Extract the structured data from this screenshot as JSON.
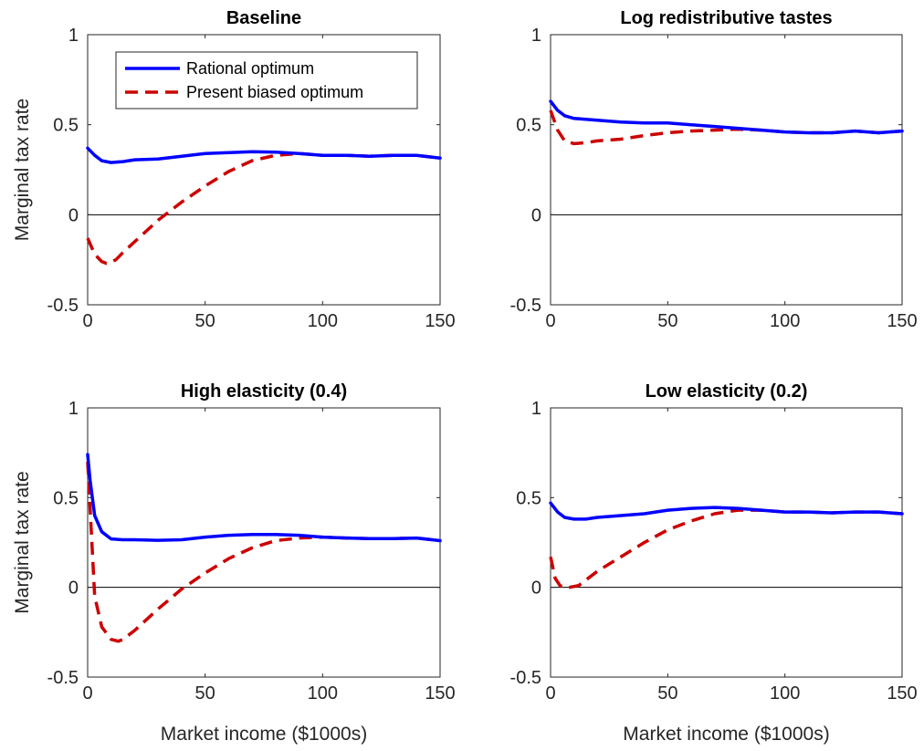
{
  "colors": {
    "rational": "#0000ff",
    "present_biased": "#cc0000",
    "axis": "#262626",
    "zero_line": "#000000"
  },
  "legend": {
    "location": "top-left",
    "items": [
      "Rational optimum",
      "Present biased optimum"
    ]
  },
  "chart_data": [
    {
      "type": "line",
      "title": "Baseline",
      "ylabel": "Marginal tax rate",
      "xlabel": "",
      "xlim": [
        0,
        150
      ],
      "ylim": [
        -0.5,
        1
      ],
      "xticks": [
        "0",
        "50",
        "100",
        "150"
      ],
      "yticks": [
        "-0.5",
        "0",
        "0.5",
        "1"
      ],
      "reference_line_y": 0,
      "series": [
        {
          "name": "Rational optimum",
          "x": [
            0,
            3,
            6,
            10,
            15,
            20,
            30,
            40,
            50,
            60,
            70,
            80,
            90,
            100,
            110,
            120,
            130,
            140,
            150
          ],
          "y": [
            0.37,
            0.33,
            0.3,
            0.29,
            0.295,
            0.305,
            0.31,
            0.325,
            0.34,
            0.345,
            0.35,
            0.348,
            0.34,
            0.33,
            0.33,
            0.325,
            0.33,
            0.33,
            0.315
          ]
        },
        {
          "name": "Present biased optimum",
          "x": [
            0,
            3,
            6,
            8,
            12,
            15,
            20,
            30,
            40,
            50,
            60,
            70,
            80,
            90,
            100,
            110,
            120,
            130,
            140,
            150
          ],
          "y": [
            -0.13,
            -0.22,
            -0.26,
            -0.27,
            -0.25,
            -0.21,
            -0.15,
            -0.03,
            0.07,
            0.16,
            0.24,
            0.3,
            0.33,
            0.34,
            0.33,
            0.33,
            0.325,
            0.33,
            0.33,
            0.315
          ]
        }
      ]
    },
    {
      "type": "line",
      "title": "Log redistributive tastes",
      "ylabel": "",
      "xlabel": "",
      "xlim": [
        0,
        150
      ],
      "ylim": [
        -0.5,
        1
      ],
      "xticks": [
        "0",
        "50",
        "100",
        "150"
      ],
      "yticks": [
        "-0.5",
        "0",
        "0.5",
        "1"
      ],
      "reference_line_y": 0,
      "series": [
        {
          "name": "Rational optimum",
          "x": [
            0,
            3,
            6,
            10,
            15,
            20,
            30,
            40,
            50,
            60,
            70,
            80,
            90,
            100,
            110,
            120,
            130,
            140,
            150
          ],
          "y": [
            0.63,
            0.58,
            0.55,
            0.535,
            0.53,
            0.525,
            0.515,
            0.51,
            0.51,
            0.5,
            0.49,
            0.48,
            0.47,
            0.46,
            0.455,
            0.455,
            0.465,
            0.455,
            0.465
          ]
        },
        {
          "name": "Present biased optimum",
          "x": [
            0,
            3,
            6,
            10,
            15,
            20,
            30,
            40,
            50,
            60,
            70,
            80,
            90,
            100,
            110,
            120,
            130,
            140,
            150
          ],
          "y": [
            0.58,
            0.47,
            0.41,
            0.395,
            0.4,
            0.41,
            0.42,
            0.44,
            0.455,
            0.465,
            0.47,
            0.475,
            0.47,
            0.46,
            0.455,
            0.455,
            0.465,
            0.455,
            0.465
          ]
        }
      ]
    },
    {
      "type": "line",
      "title": "High elasticity (0.4)",
      "ylabel": "Marginal tax rate",
      "xlabel": "Market income ($1000s)",
      "xlim": [
        0,
        150
      ],
      "ylim": [
        -0.5,
        1
      ],
      "xticks": [
        "0",
        "50",
        "100",
        "150"
      ],
      "yticks": [
        "-0.5",
        "0",
        "0.5",
        "1"
      ],
      "reference_line_y": 0,
      "series": [
        {
          "name": "Rational optimum",
          "x": [
            0,
            1,
            3,
            6,
            10,
            15,
            20,
            30,
            40,
            50,
            60,
            70,
            80,
            90,
            100,
            110,
            120,
            130,
            140,
            150
          ],
          "y": [
            0.74,
            0.6,
            0.4,
            0.31,
            0.27,
            0.265,
            0.265,
            0.262,
            0.265,
            0.28,
            0.29,
            0.295,
            0.295,
            0.29,
            0.28,
            0.275,
            0.272,
            0.272,
            0.275,
            0.26
          ]
        },
        {
          "name": "Present biased optimum",
          "x": [
            0,
            1,
            3,
            6,
            10,
            13,
            15,
            20,
            30,
            40,
            50,
            60,
            70,
            80,
            90,
            100,
            110,
            120,
            130,
            140,
            150
          ],
          "y": [
            0.7,
            0.45,
            -0.05,
            -0.22,
            -0.29,
            -0.3,
            -0.29,
            -0.24,
            -0.12,
            -0.01,
            0.08,
            0.16,
            0.22,
            0.26,
            0.275,
            0.28,
            0.275,
            0.272,
            0.272,
            0.275,
            0.26
          ]
        }
      ]
    },
    {
      "type": "line",
      "title": "Low elasticity (0.2)",
      "ylabel": "",
      "xlabel": "Market income ($1000s)",
      "xlim": [
        0,
        150
      ],
      "ylim": [
        -0.5,
        1
      ],
      "xticks": [
        "0",
        "50",
        "100",
        "150"
      ],
      "yticks": [
        "-0.5",
        "0",
        "0.5",
        "1"
      ],
      "reference_line_y": 0,
      "series": [
        {
          "name": "Rational optimum",
          "x": [
            0,
            3,
            6,
            10,
            15,
            20,
            30,
            40,
            50,
            60,
            70,
            80,
            90,
            100,
            110,
            120,
            130,
            140,
            150
          ],
          "y": [
            0.47,
            0.42,
            0.39,
            0.38,
            0.38,
            0.39,
            0.4,
            0.41,
            0.43,
            0.44,
            0.445,
            0.44,
            0.43,
            0.42,
            0.42,
            0.415,
            0.42,
            0.42,
            0.41
          ]
        },
        {
          "name": "Present biased optimum",
          "x": [
            0,
            2,
            4,
            6,
            8,
            12,
            15,
            20,
            30,
            40,
            50,
            60,
            70,
            80,
            90,
            100,
            110,
            120,
            130,
            140,
            150
          ],
          "y": [
            0.17,
            0.05,
            0.01,
            0.0,
            0.0,
            0.01,
            0.04,
            0.09,
            0.17,
            0.25,
            0.32,
            0.37,
            0.41,
            0.43,
            0.43,
            0.42,
            0.42,
            0.415,
            0.42,
            0.42,
            0.41
          ]
        }
      ]
    }
  ]
}
